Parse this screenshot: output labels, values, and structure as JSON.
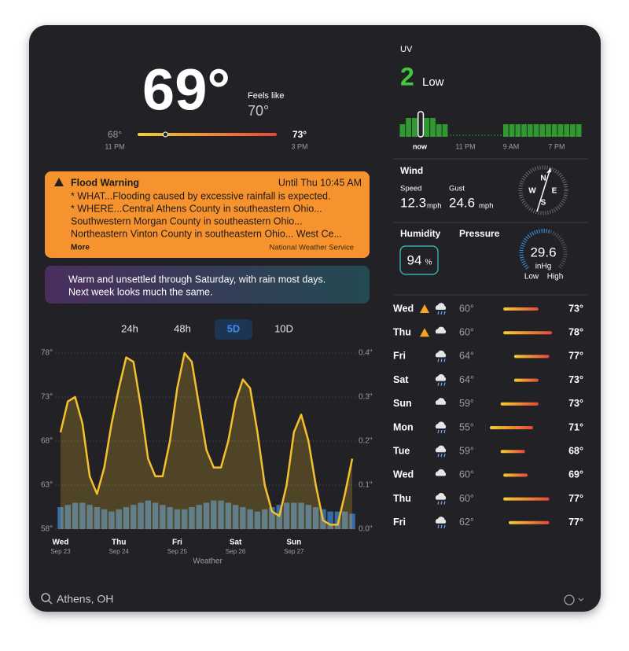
{
  "current": {
    "temp": {
      "value": 69,
      "label": "69°"
    },
    "feels_like_label": "Feels like",
    "feels_like": "70°",
    "low": {
      "value": 68,
      "label": "68°"
    },
    "low_time": "11 PM",
    "high": {
      "value": 73,
      "label": "73°"
    },
    "high_time": "3 PM"
  },
  "alert": {
    "title": "Flood Warning",
    "until": "Until Thu 10:45 AM",
    "lines": [
      "* WHAT...Flooding caused by excessive rainfall is expected.",
      "* WHERE...Central Athens County in southeastern Ohio...",
      "Southwestern Morgan County in southeastern Ohio...",
      "Northeastern Vinton County in southeastern Ohio... West Ce..."
    ],
    "more": "More",
    "source": "National Weather Service"
  },
  "summary": {
    "lines": [
      "Warm and unsettled through Saturday, with rain most days.",
      "Next week looks much the same."
    ]
  },
  "tabs": {
    "items": [
      "24h",
      "48h",
      "5D",
      "10D"
    ],
    "selected": 2
  },
  "chart_data": {
    "type": "line",
    "days": [
      {
        "day": "Wed",
        "date": "Sep 23"
      },
      {
        "day": "Thu",
        "date": "Sep 24"
      },
      {
        "day": "Fri",
        "date": "Sep 25"
      },
      {
        "day": "Sat",
        "date": "Sep 26"
      },
      {
        "day": "Sun",
        "date": "Sep 27"
      }
    ],
    "ylim": [
      58,
      78
    ],
    "yticks": [
      {
        "value": 58,
        "label": "58°"
      },
      {
        "value": 63,
        "label": "63°"
      },
      {
        "value": 68,
        "label": "68°"
      },
      {
        "value": 73,
        "label": "73°"
      },
      {
        "value": 78,
        "label": "78°"
      }
    ],
    "y2lim": [
      0,
      0.4
    ],
    "y2ticks": [
      {
        "value": 0,
        "label": "0.0\""
      },
      {
        "value": 0.1,
        "label": "0.1\""
      },
      {
        "value": 0.2,
        "label": "0.2\""
      },
      {
        "value": 0.3,
        "label": "0.3\""
      },
      {
        "value": 0.4,
        "label": "0.4\""
      }
    ],
    "series": [
      {
        "color": "#f5c02e",
        "values": [
          69,
          72.5,
          73,
          70,
          64,
          62,
          65,
          70,
          74,
          77.5,
          77,
          72,
          66,
          64,
          64,
          68,
          74,
          78,
          77,
          72,
          67,
          65,
          65,
          68,
          72.5,
          75,
          74,
          69,
          63,
          60,
          59.5,
          63,
          69,
          71,
          68,
          63,
          59,
          58.5,
          58.5,
          62,
          66
        ]
      },
      {
        "color": "#3f7fc4",
        "axis": "y2",
        "values": [
          0.05,
          0.055,
          0.06,
          0.06,
          0.055,
          0.05,
          0.045,
          0.04,
          0.045,
          0.05,
          0.055,
          0.06,
          0.065,
          0.06,
          0.055,
          0.05,
          0.045,
          0.045,
          0.05,
          0.055,
          0.06,
          0.065,
          0.065,
          0.06,
          0.055,
          0.05,
          0.045,
          0.04,
          0.045,
          0.05,
          0.055,
          0.06,
          0.06,
          0.06,
          0.055,
          0.05,
          0.045,
          0.04,
          0.04,
          0.04,
          0.035
        ]
      }
    ],
    "source": "Weather"
  },
  "uv": {
    "title": "UV",
    "index": "2",
    "level": "Low",
    "labels": [
      "now",
      "11 PM",
      "9 AM",
      "7 PM"
    ],
    "hourly": [
      2,
      3,
      3,
      4,
      3,
      3,
      2,
      2,
      0,
      0,
      0,
      0,
      0,
      0,
      0,
      0,
      0,
      2,
      2,
      2,
      2,
      2,
      2,
      2,
      2,
      2,
      2,
      2,
      2,
      2
    ]
  },
  "wind": {
    "title": "Wind",
    "speed_label": "Speed",
    "speed": "12.3",
    "speed_unit": "mph",
    "gust_label": "Gust",
    "gust": "24.6",
    "gust_unit": "mph",
    "compass": [
      "N",
      "E",
      "S",
      "W"
    ]
  },
  "humidity": {
    "title": "Humidity",
    "value": "94",
    "unit": "%"
  },
  "pressure": {
    "title": "Pressure",
    "value": "29.6",
    "unit": "inHg",
    "low": "Low",
    "high": "High"
  },
  "daily": {
    "rows": [
      {
        "day": "Wed",
        "alert": true,
        "icon": "rain",
        "low": {
          "value": 60,
          "label": "60°"
        },
        "high": {
          "value": 73,
          "label": "73°"
        }
      },
      {
        "day": "Thu",
        "alert": true,
        "icon": "cloud",
        "low": {
          "value": 60,
          "label": "60°"
        },
        "high": {
          "value": 78,
          "label": "78°"
        }
      },
      {
        "day": "Fri",
        "alert": false,
        "icon": "rain",
        "low": {
          "value": 64,
          "label": "64°"
        },
        "high": {
          "value": 77,
          "label": "77°"
        }
      },
      {
        "day": "Sat",
        "alert": false,
        "icon": "rain",
        "low": {
          "value": 64,
          "label": "64°"
        },
        "high": {
          "value": 73,
          "label": "73°"
        }
      },
      {
        "day": "Sun",
        "alert": false,
        "icon": "cloud",
        "low": {
          "value": 59,
          "label": "59°"
        },
        "high": {
          "value": 73,
          "label": "73°"
        }
      },
      {
        "day": "Mon",
        "alert": false,
        "icon": "rain",
        "low": {
          "value": 55,
          "label": "55°"
        },
        "high": {
          "value": 71,
          "label": "71°"
        }
      },
      {
        "day": "Tue",
        "alert": false,
        "icon": "rain",
        "low": {
          "value": 59,
          "label": "59°"
        },
        "high": {
          "value": 68,
          "label": "68°"
        }
      },
      {
        "day": "Wed",
        "alert": false,
        "icon": "cloud",
        "low": {
          "value": 60,
          "label": "60°"
        },
        "high": {
          "value": 69,
          "label": "69°"
        }
      },
      {
        "day": "Thu",
        "alert": false,
        "icon": "rain",
        "low": {
          "value": 60,
          "label": "60°"
        },
        "high": {
          "value": 77,
          "label": "77°"
        }
      },
      {
        "day": "Fri",
        "alert": false,
        "icon": "rain",
        "low": {
          "value": 62,
          "label": "62°"
        },
        "high": {
          "value": 77,
          "label": "77°"
        }
      }
    ]
  },
  "search": {
    "location": "Athens, OH"
  }
}
